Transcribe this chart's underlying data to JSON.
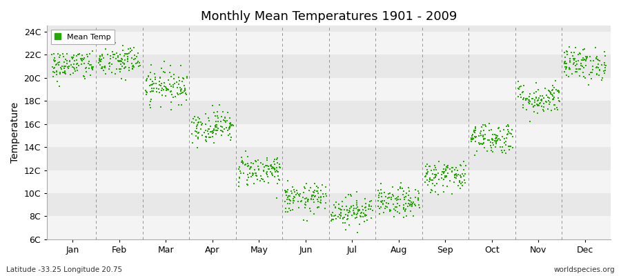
{
  "title": "Monthly Mean Temperatures 1901 - 2009",
  "ylabel": "Temperature",
  "footer_left": "Latitude -33.25 Longitude 20.75",
  "footer_right": "worldspecies.org",
  "legend_label": "Mean Temp",
  "marker_color": "#22aa00",
  "bg_color": "#ffffff",
  "band_colors": [
    "#f4f4f4",
    "#e8e8e8"
  ],
  "ylim": [
    6,
    24.5
  ],
  "yticks": [
    6,
    8,
    10,
    12,
    14,
    16,
    18,
    20,
    22,
    24
  ],
  "ytick_labels": [
    "6C",
    "8C",
    "10C",
    "12C",
    "14C",
    "16C",
    "18C",
    "20C",
    "22C",
    "24C"
  ],
  "month_names": [
    "Jan",
    "Feb",
    "Mar",
    "Apr",
    "May",
    "Jun",
    "Jul",
    "Aug",
    "Sep",
    "Oct",
    "Nov",
    "Dec"
  ],
  "monthly_mean_temps": [
    21.1,
    21.4,
    19.3,
    15.8,
    12.0,
    9.5,
    8.5,
    9.2,
    11.5,
    14.8,
    18.2,
    21.2
  ],
  "monthly_std": [
    0.7,
    0.75,
    0.75,
    0.7,
    0.7,
    0.65,
    0.65,
    0.65,
    0.7,
    0.7,
    0.7,
    0.7
  ],
  "n_years": 109,
  "seed": 42
}
